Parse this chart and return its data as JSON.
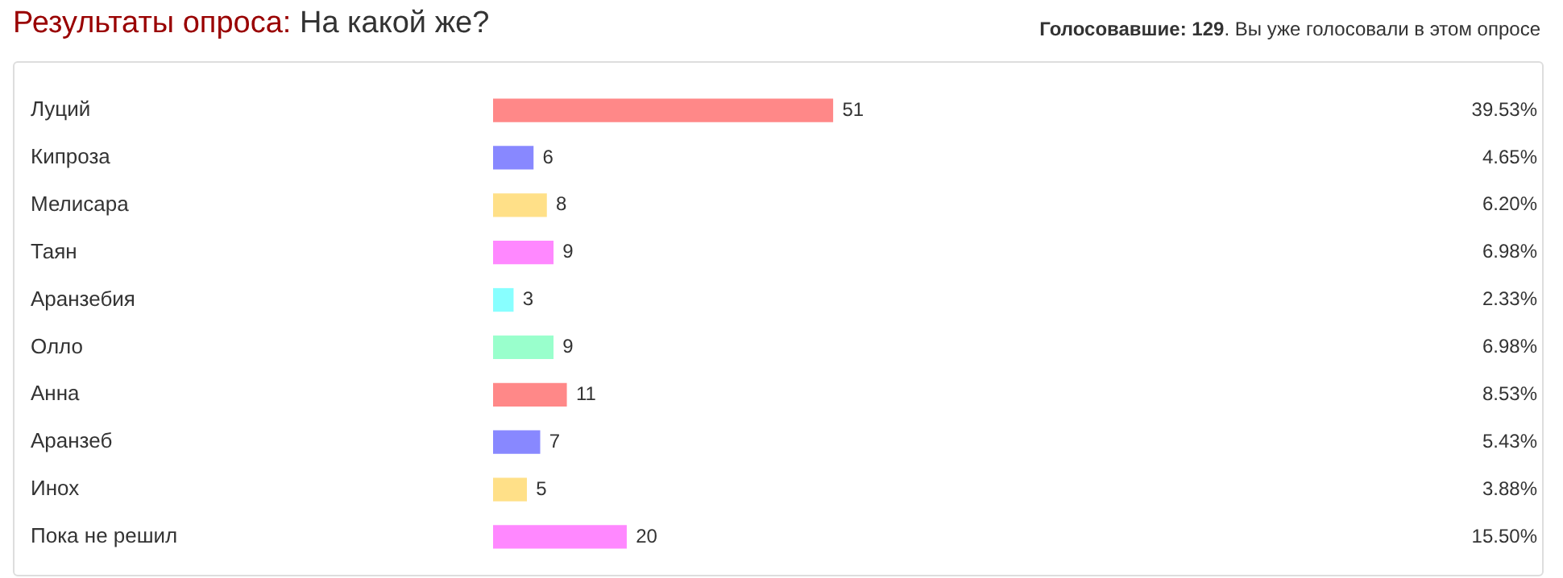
{
  "chart_data": {
    "type": "bar",
    "orientation": "horizontal",
    "title": "Результаты опроса: На какой же?",
    "subtitle": "Голосовавшие: 129. Вы уже голосовали в этом опросе",
    "categories": [
      "Луций",
      "Кипроза",
      "Мелисара",
      "Таян",
      "Аранзебия",
      "Олло",
      "Анна",
      "Аранзеб",
      "Инох",
      "Пока не решил"
    ],
    "values": [
      51,
      6,
      8,
      9,
      3,
      9,
      11,
      7,
      5,
      20
    ],
    "colors": [
      "#ff8888",
      "#8888ff",
      "#ffe088",
      "#ff88ff",
      "#88ffff",
      "#99ffcc",
      "#ff8888",
      "#8888ff",
      "#ffe088",
      "#ff88ff"
    ],
    "data_labels": true,
    "annotations": [
      "39.53%",
      "4.65%",
      "6.20%",
      "6.98%",
      "2.33%",
      "6.98%",
      "8.53%",
      "5.43%",
      "3.88%",
      "15.50%"
    ],
    "grid": false,
    "legend": false
  }
}
